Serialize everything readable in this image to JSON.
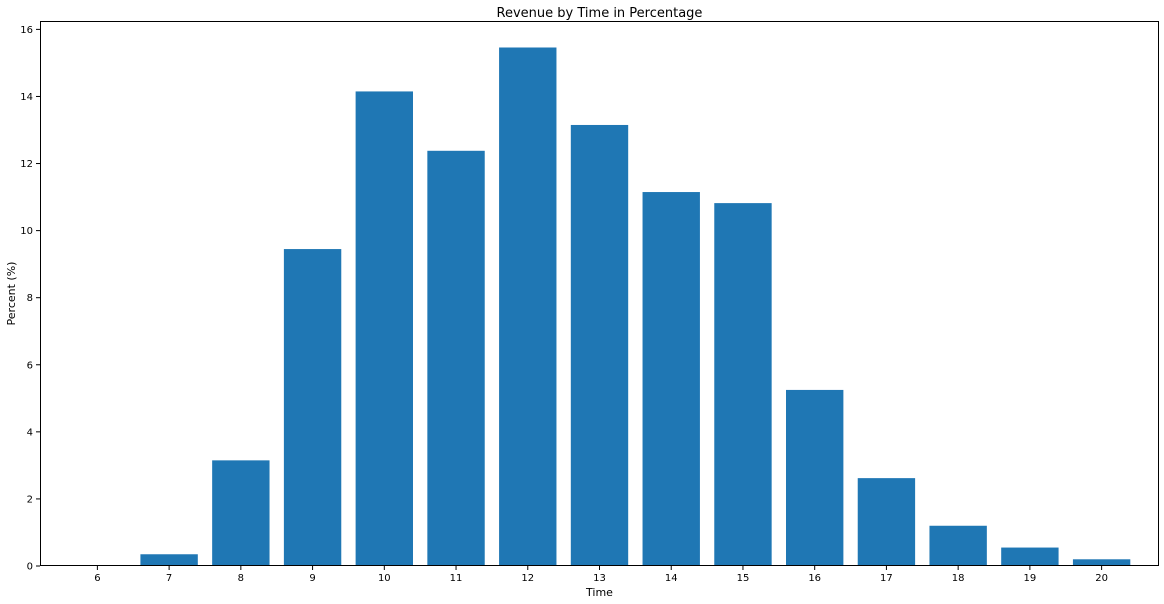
{
  "chart_data": {
    "type": "bar",
    "title": "Revenue by Time in Percentage",
    "xlabel": "Time",
    "ylabel": "Percent (%)",
    "categories": [
      "6",
      "7",
      "8",
      "9",
      "10",
      "11",
      "12",
      "13",
      "14",
      "15",
      "16",
      "17",
      "18",
      "19",
      "20"
    ],
    "values": [
      0.0,
      0.35,
      3.15,
      9.45,
      14.15,
      12.38,
      15.46,
      13.15,
      11.15,
      10.82,
      5.25,
      2.62,
      1.2,
      0.55,
      0.2
    ],
    "ylim": [
      0,
      16.25
    ],
    "yticks": [
      "0",
      "2",
      "4",
      "6",
      "8",
      "10",
      "12",
      "14",
      "16"
    ],
    "bar_color": "#1f77b4",
    "grid": false,
    "legend": "none"
  }
}
